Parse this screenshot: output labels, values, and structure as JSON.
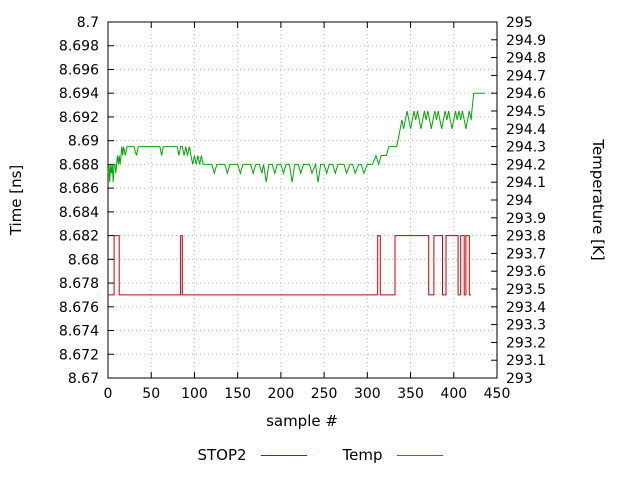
{
  "chart_data": {
    "type": "line",
    "title": "",
    "xlabel": "sample #",
    "ylabel": "Time [ns]",
    "y2label": "Temperature [K]",
    "xlim": [
      0,
      450
    ],
    "ylim": [
      8.67,
      8.7
    ],
    "y2lim": [
      293,
      295
    ],
    "grid": true,
    "legend_position": "bottom-center",
    "xticks": [
      {
        "v": 0,
        "t": "0"
      },
      {
        "v": 50,
        "t": "50"
      },
      {
        "v": 100,
        "t": "100"
      },
      {
        "v": 150,
        "t": "150"
      },
      {
        "v": 200,
        "t": "200"
      },
      {
        "v": 250,
        "t": "250"
      },
      {
        "v": 300,
        "t": "300"
      },
      {
        "v": 350,
        "t": "350"
      },
      {
        "v": 400,
        "t": "400"
      },
      {
        "v": 450,
        "t": "450"
      }
    ],
    "yticks": [
      {
        "v": 8.67,
        "t": "8.67"
      },
      {
        "v": 8.672,
        "t": "8.672"
      },
      {
        "v": 8.674,
        "t": "8.674"
      },
      {
        "v": 8.676,
        "t": "8.676"
      },
      {
        "v": 8.678,
        "t": "8.678"
      },
      {
        "v": 8.68,
        "t": "8.68"
      },
      {
        "v": 8.682,
        "t": "8.682"
      },
      {
        "v": 8.684,
        "t": "8.684"
      },
      {
        "v": 8.686,
        "t": "8.686"
      },
      {
        "v": 8.688,
        "t": "8.688"
      },
      {
        "v": 8.69,
        "t": "8.69"
      },
      {
        "v": 8.692,
        "t": "8.692"
      },
      {
        "v": 8.694,
        "t": "8.694"
      },
      {
        "v": 8.696,
        "t": "8.696"
      },
      {
        "v": 8.698,
        "t": "8.698"
      },
      {
        "v": 8.7,
        "t": "8.7"
      }
    ],
    "y2ticks": [
      {
        "v": 293,
        "t": "293"
      },
      {
        "v": 293.1,
        "t": "293.1"
      },
      {
        "v": 293.2,
        "t": "293.2"
      },
      {
        "v": 293.3,
        "t": "293.3"
      },
      {
        "v": 293.4,
        "t": "293.4"
      },
      {
        "v": 293.5,
        "t": "293.5"
      },
      {
        "v": 293.6,
        "t": "293.6"
      },
      {
        "v": 293.7,
        "t": "293.7"
      },
      {
        "v": 293.8,
        "t": "293.8"
      },
      {
        "v": 293.9,
        "t": "293.9"
      },
      {
        "v": 294,
        "t": "294"
      },
      {
        "v": 294.1,
        "t": "294.1"
      },
      {
        "v": 294.2,
        "t": "294.2"
      },
      {
        "v": 294.3,
        "t": "294.3"
      },
      {
        "v": 294.4,
        "t": "294.4"
      },
      {
        "v": 294.5,
        "t": "294.5"
      },
      {
        "v": 294.6,
        "t": "294.6"
      },
      {
        "v": 294.7,
        "t": "294.7"
      },
      {
        "v": 294.8,
        "t": "294.8"
      },
      {
        "v": 294.9,
        "t": "294.9"
      },
      {
        "v": 295,
        "t": "295"
      }
    ],
    "series": [
      {
        "name": "STOP2",
        "axis": "y1",
        "color": "#cc0000",
        "points": [
          [
            0,
            8.677
          ],
          [
            7,
            8.677
          ],
          [
            7,
            8.682
          ],
          [
            13,
            8.682
          ],
          [
            13,
            8.677
          ],
          [
            84,
            8.677
          ],
          [
            84,
            8.682
          ],
          [
            86,
            8.682
          ],
          [
            86,
            8.677
          ],
          [
            312,
            8.677
          ],
          [
            312,
            8.682
          ],
          [
            315,
            8.682
          ],
          [
            315,
            8.677
          ],
          [
            332,
            8.677
          ],
          [
            332,
            8.682
          ],
          [
            371,
            8.682
          ],
          [
            371,
            8.677
          ],
          [
            377,
            8.677
          ],
          [
            377,
            8.682
          ],
          [
            387,
            8.682
          ],
          [
            387,
            8.677
          ],
          [
            391,
            8.677
          ],
          [
            391,
            8.682
          ],
          [
            405,
            8.682
          ],
          [
            405,
            8.677
          ],
          [
            408,
            8.677
          ],
          [
            408,
            8.682
          ],
          [
            412,
            8.682
          ],
          [
            412,
            8.677
          ],
          [
            414,
            8.677
          ],
          [
            414,
            8.682
          ],
          [
            418,
            8.682
          ],
          [
            418,
            8.677
          ],
          [
            420,
            8.677
          ]
        ]
      },
      {
        "name": "Temp",
        "axis": "y2",
        "color": "#00a800",
        "points": [
          [
            0,
            294.15
          ],
          [
            1,
            294.2
          ],
          [
            2,
            294.1
          ],
          [
            3,
            294.2
          ],
          [
            4,
            294.15
          ],
          [
            5,
            294.2
          ],
          [
            6,
            294.1
          ],
          [
            7,
            294.2
          ],
          [
            8,
            294.2
          ],
          [
            9,
            294.15
          ],
          [
            10,
            294.2
          ],
          [
            11,
            294.25
          ],
          [
            12,
            294.2
          ],
          [
            13,
            294.25
          ],
          [
            14,
            294.2
          ],
          [
            15,
            294.25
          ],
          [
            16,
            294.3
          ],
          [
            17,
            294.25
          ],
          [
            18,
            294.3
          ],
          [
            20,
            294.25
          ],
          [
            22,
            294.3
          ],
          [
            26,
            294.3
          ],
          [
            30,
            294.3
          ],
          [
            33,
            294.25
          ],
          [
            35,
            294.3
          ],
          [
            40,
            294.3
          ],
          [
            45,
            294.3
          ],
          [
            50,
            294.3
          ],
          [
            55,
            294.3
          ],
          [
            60,
            294.3
          ],
          [
            62,
            294.25
          ],
          [
            64,
            294.3
          ],
          [
            70,
            294.3
          ],
          [
            75,
            294.3
          ],
          [
            80,
            294.3
          ],
          [
            82,
            294.25
          ],
          [
            84,
            294.3
          ],
          [
            86,
            294.3
          ],
          [
            88,
            294.25
          ],
          [
            90,
            294.3
          ],
          [
            92,
            294.25
          ],
          [
            94,
            294.3
          ],
          [
            96,
            294.25
          ],
          [
            98,
            294.2
          ],
          [
            100,
            294.25
          ],
          [
            102,
            294.2
          ],
          [
            104,
            294.25
          ],
          [
            106,
            294.2
          ],
          [
            108,
            294.25
          ],
          [
            110,
            294.2
          ],
          [
            115,
            294.2
          ],
          [
            120,
            294.2
          ],
          [
            123,
            294.15
          ],
          [
            126,
            294.2
          ],
          [
            130,
            294.2
          ],
          [
            135,
            294.2
          ],
          [
            138,
            294.15
          ],
          [
            141,
            294.2
          ],
          [
            145,
            294.2
          ],
          [
            150,
            294.2
          ],
          [
            153,
            294.15
          ],
          [
            156,
            294.2
          ],
          [
            160,
            294.2
          ],
          [
            165,
            294.2
          ],
          [
            168,
            294.15
          ],
          [
            171,
            294.2
          ],
          [
            175,
            294.2
          ],
          [
            178,
            294.15
          ],
          [
            180,
            294.2
          ],
          [
            183,
            294.1
          ],
          [
            186,
            294.2
          ],
          [
            190,
            294.2
          ],
          [
            193,
            294.15
          ],
          [
            196,
            294.2
          ],
          [
            200,
            294.2
          ],
          [
            203,
            294.15
          ],
          [
            206,
            294.2
          ],
          [
            210,
            294.2
          ],
          [
            213,
            294.1
          ],
          [
            216,
            294.2
          ],
          [
            220,
            294.2
          ],
          [
            223,
            294.15
          ],
          [
            226,
            294.2
          ],
          [
            230,
            294.2
          ],
          [
            233,
            294.2
          ],
          [
            236,
            294.15
          ],
          [
            240,
            294.2
          ],
          [
            243,
            294.1
          ],
          [
            246,
            294.2
          ],
          [
            250,
            294.2
          ],
          [
            253,
            294.15
          ],
          [
            256,
            294.2
          ],
          [
            260,
            294.2
          ],
          [
            263,
            294.15
          ],
          [
            266,
            294.2
          ],
          [
            270,
            294.2
          ],
          [
            273,
            294.2
          ],
          [
            276,
            294.15
          ],
          [
            280,
            294.2
          ],
          [
            283,
            294.2
          ],
          [
            286,
            294.15
          ],
          [
            290,
            294.2
          ],
          [
            293,
            294.2
          ],
          [
            296,
            294.15
          ],
          [
            300,
            294.2
          ],
          [
            303,
            294.2
          ],
          [
            306,
            294.2
          ],
          [
            310,
            294.25
          ],
          [
            313,
            294.2
          ],
          [
            316,
            294.25
          ],
          [
            319,
            294.25
          ],
          [
            322,
            294.25
          ],
          [
            325,
            294.3
          ],
          [
            328,
            294.3
          ],
          [
            331,
            294.3
          ],
          [
            334,
            294.3
          ],
          [
            336,
            294.35
          ],
          [
            338,
            294.4
          ],
          [
            340,
            294.45
          ],
          [
            342,
            294.4
          ],
          [
            344,
            294.45
          ],
          [
            346,
            294.5
          ],
          [
            348,
            294.45
          ],
          [
            350,
            294.4
          ],
          [
            352,
            294.45
          ],
          [
            354,
            294.5
          ],
          [
            356,
            294.45
          ],
          [
            358,
            294.5
          ],
          [
            360,
            294.45
          ],
          [
            362,
            294.4
          ],
          [
            364,
            294.45
          ],
          [
            366,
            294.5
          ],
          [
            368,
            294.45
          ],
          [
            370,
            294.5
          ],
          [
            372,
            294.45
          ],
          [
            374,
            294.4
          ],
          [
            376,
            294.45
          ],
          [
            378,
            294.5
          ],
          [
            380,
            294.45
          ],
          [
            382,
            294.5
          ],
          [
            384,
            294.45
          ],
          [
            386,
            294.4
          ],
          [
            388,
            294.45
          ],
          [
            390,
            294.5
          ],
          [
            392,
            294.45
          ],
          [
            394,
            294.5
          ],
          [
            396,
            294.45
          ],
          [
            398,
            294.4
          ],
          [
            400,
            294.45
          ],
          [
            402,
            294.5
          ],
          [
            404,
            294.45
          ],
          [
            406,
            294.5
          ],
          [
            408,
            294.45
          ],
          [
            410,
            294.5
          ],
          [
            412,
            294.45
          ],
          [
            414,
            294.4
          ],
          [
            416,
            294.45
          ],
          [
            418,
            294.5
          ],
          [
            420,
            294.45
          ],
          [
            421,
            294.5
          ],
          [
            422,
            294.55
          ],
          [
            423,
            294.6
          ],
          [
            425,
            294.6
          ],
          [
            428,
            294.6
          ],
          [
            430,
            294.6
          ],
          [
            432,
            294.6
          ],
          [
            434,
            294.6
          ],
          [
            436,
            294.6
          ]
        ]
      }
    ]
  }
}
